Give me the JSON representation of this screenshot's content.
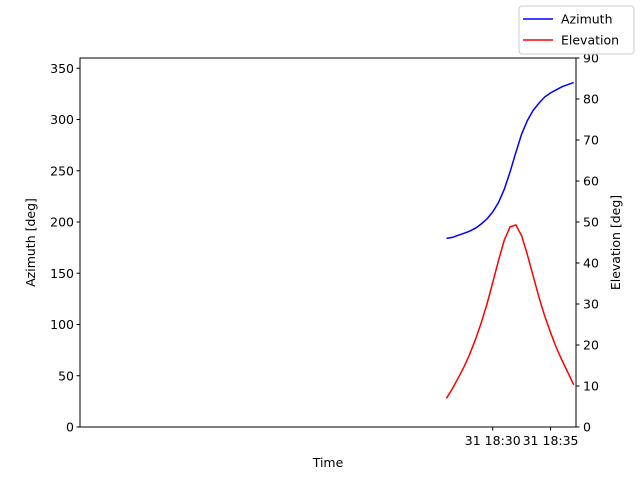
{
  "chart_data": {
    "type": "line",
    "xlabel": "Time",
    "ylabel_left": "Azimuth [deg]",
    "ylabel_right": "Elevation [deg]",
    "x_range_minutes": [
      -5.7,
      37.2
    ],
    "xticks": [
      {
        "minute": 30,
        "label": "31 18:30"
      },
      {
        "minute": 35,
        "label": "31 18:35"
      }
    ],
    "ylim_left": [
      0,
      360
    ],
    "yticks_left": [
      0,
      50,
      100,
      150,
      200,
      250,
      300,
      350
    ],
    "ylim_right": [
      0,
      90
    ],
    "yticks_right": [
      0,
      10,
      20,
      30,
      40,
      50,
      60,
      70,
      80,
      90
    ],
    "grid": false,
    "legend_position": "top-right (outside axes)",
    "x_minutes": [
      26.0,
      26.5,
      27.0,
      27.5,
      28.0,
      28.5,
      29.0,
      29.5,
      30.0,
      30.5,
      31.0,
      31.5,
      32.0,
      32.5,
      33.0,
      33.5,
      34.0,
      34.5,
      35.0,
      35.5,
      36.0,
      36.5,
      37.0
    ],
    "series": [
      {
        "name": "Azimuth",
        "color": "#0000ff",
        "axis": "left",
        "values": [
          184,
          185,
          187,
          189,
          191,
          194,
          198,
          203,
          210,
          219,
          232,
          249,
          268,
          286,
          299,
          309,
          316,
          322,
          326,
          329,
          332,
          334,
          336
        ]
      },
      {
        "name": "Elevation",
        "color": "#ff0000",
        "axis": "right",
        "values": [
          7.0,
          9.3,
          11.9,
          14.6,
          17.7,
          21.3,
          25.4,
          30.0,
          35.3,
          40.6,
          45.6,
          48.8,
          49.3,
          46.6,
          42.0,
          36.8,
          31.6,
          27.0,
          23.0,
          19.4,
          16.2,
          13.3,
          10.3
        ]
      }
    ]
  }
}
